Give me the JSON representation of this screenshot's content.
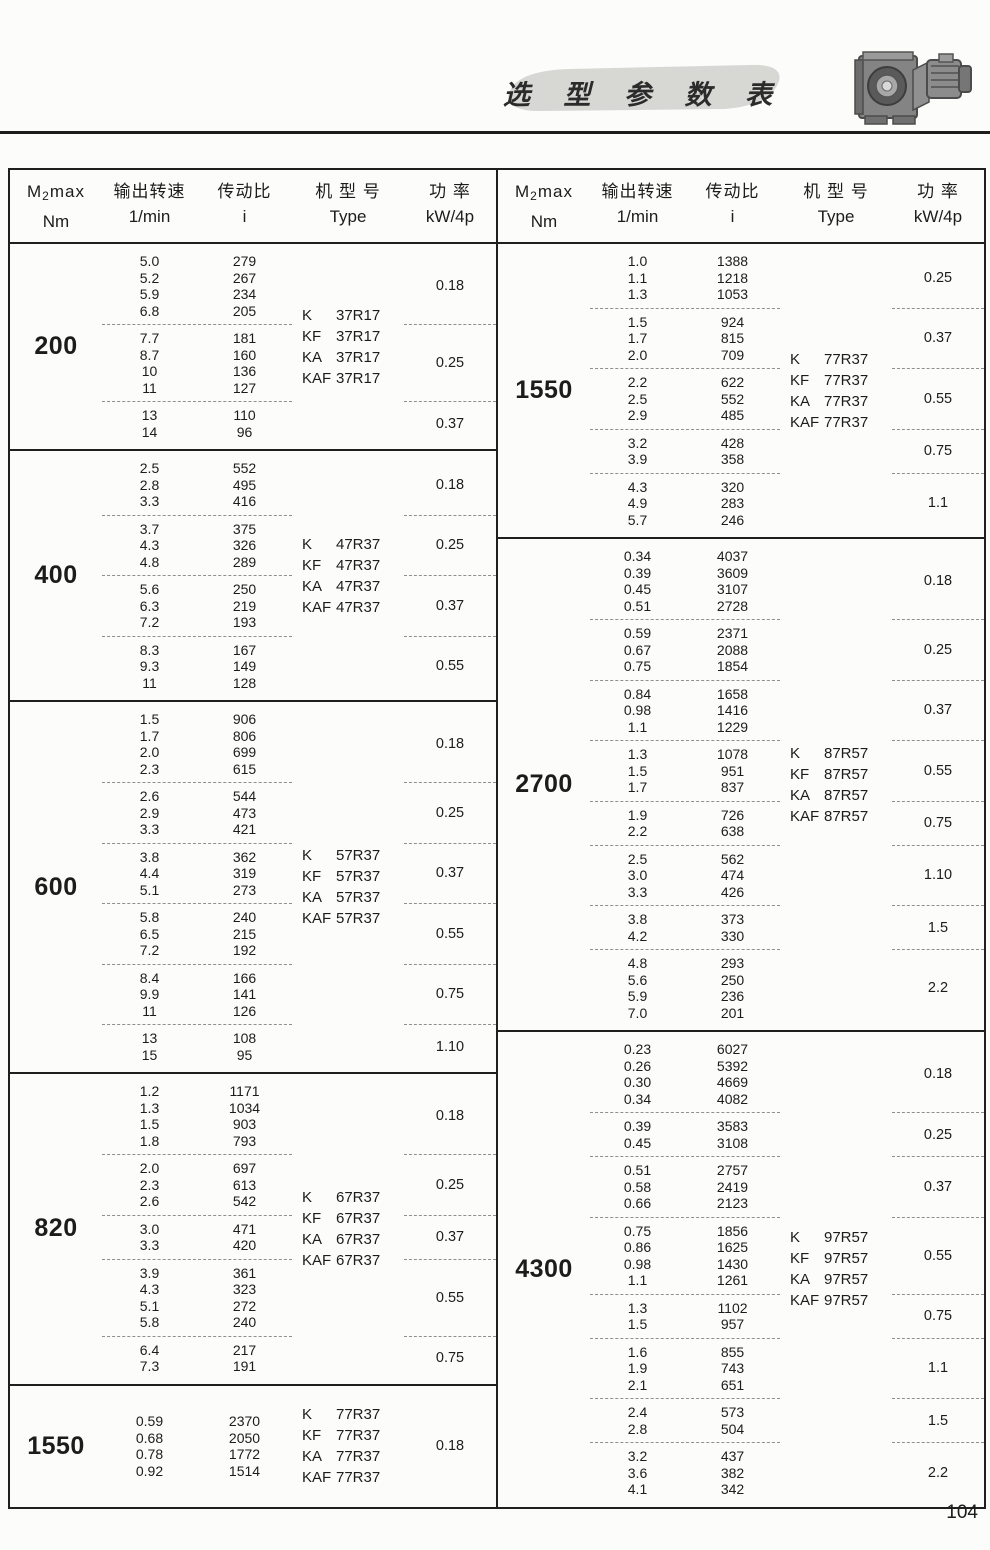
{
  "page": {
    "title": "选 型 参 数 表",
    "page_number": "104"
  },
  "header": {
    "torque": {
      "m": "M",
      "sub": "2",
      "rest": "max",
      "unit": "Nm"
    },
    "speed": {
      "cn": "输出转速",
      "unit": "1/min"
    },
    "ratio": {
      "cn": "传动比",
      "unit": "i"
    },
    "type": {
      "cn": "机 型 号",
      "unit": "Type"
    },
    "power": {
      "cn": "功 率",
      "unit": "kW/4p"
    }
  },
  "tables": {
    "left": [
      {
        "torque": "200",
        "types": [
          {
            "prefix": "K",
            "model": "37R17"
          },
          {
            "prefix": "KF",
            "model": "37R17"
          },
          {
            "prefix": "KA",
            "model": "37R17"
          },
          {
            "prefix": "KAF",
            "model": "37R17"
          }
        ],
        "groups": [
          {
            "rows": [
              [
                "5.0",
                "279"
              ],
              [
                "5.2",
                "267"
              ],
              [
                "5.9",
                "234"
              ],
              [
                "6.8",
                "205"
              ]
            ],
            "power": "0.18"
          },
          {
            "rows": [
              [
                "7.7",
                "181"
              ],
              [
                "8.7",
                "160"
              ],
              [
                "10",
                "136"
              ],
              [
                "11",
                "127"
              ]
            ],
            "power": "0.25"
          },
          {
            "rows": [
              [
                "13",
                "110"
              ],
              [
                "14",
                "96"
              ]
            ],
            "power": "0.37"
          }
        ]
      },
      {
        "torque": "400",
        "types": [
          {
            "prefix": "K",
            "model": "47R37"
          },
          {
            "prefix": "KF",
            "model": "47R37"
          },
          {
            "prefix": "KA",
            "model": "47R37"
          },
          {
            "prefix": "KAF",
            "model": "47R37"
          }
        ],
        "groups": [
          {
            "rows": [
              [
                "2.5",
                "552"
              ],
              [
                "2.8",
                "495"
              ],
              [
                "3.3",
                "416"
              ]
            ],
            "power": "0.18"
          },
          {
            "rows": [
              [
                "3.7",
                "375"
              ],
              [
                "4.3",
                "326"
              ],
              [
                "4.8",
                "289"
              ]
            ],
            "power": "0.25"
          },
          {
            "rows": [
              [
                "5.6",
                "250"
              ],
              [
                "6.3",
                "219"
              ],
              [
                "7.2",
                "193"
              ]
            ],
            "power": "0.37"
          },
          {
            "rows": [
              [
                "8.3",
                "167"
              ],
              [
                "9.3",
                "149"
              ],
              [
                "11",
                "128"
              ]
            ],
            "power": "0.55"
          }
        ]
      },
      {
        "torque": "600",
        "types": [
          {
            "prefix": "K",
            "model": "57R37"
          },
          {
            "prefix": "KF",
            "model": "57R37"
          },
          {
            "prefix": "KA",
            "model": "57R37"
          },
          {
            "prefix": "KAF",
            "model": "57R37"
          }
        ],
        "groups": [
          {
            "rows": [
              [
                "1.5",
                "906"
              ],
              [
                "1.7",
                "806"
              ],
              [
                "2.0",
                "699"
              ],
              [
                "2.3",
                "615"
              ]
            ],
            "power": "0.18"
          },
          {
            "rows": [
              [
                "2.6",
                "544"
              ],
              [
                "2.9",
                "473"
              ],
              [
                "3.3",
                "421"
              ]
            ],
            "power": "0.25"
          },
          {
            "rows": [
              [
                "3.8",
                "362"
              ],
              [
                "4.4",
                "319"
              ],
              [
                "5.1",
                "273"
              ]
            ],
            "power": "0.37"
          },
          {
            "rows": [
              [
                "5.8",
                "240"
              ],
              [
                "6.5",
                "215"
              ],
              [
                "7.2",
                "192"
              ]
            ],
            "power": "0.55"
          },
          {
            "rows": [
              [
                "8.4",
                "166"
              ],
              [
                "9.9",
                "141"
              ],
              [
                "11",
                "126"
              ]
            ],
            "power": "0.75"
          },
          {
            "rows": [
              [
                "13",
                "108"
              ],
              [
                "15",
                "95"
              ]
            ],
            "power": "1.10"
          }
        ]
      },
      {
        "torque": "820",
        "types": [
          {
            "prefix": "K",
            "model": "67R37"
          },
          {
            "prefix": "KF",
            "model": "67R37"
          },
          {
            "prefix": "KA",
            "model": "67R37"
          },
          {
            "prefix": "KAF",
            "model": "67R37"
          }
        ],
        "groups": [
          {
            "rows": [
              [
                "1.2",
                "1171"
              ],
              [
                "1.3",
                "1034"
              ],
              [
                "1.5",
                "903"
              ],
              [
                "1.8",
                "793"
              ]
            ],
            "power": "0.18"
          },
          {
            "rows": [
              [
                "2.0",
                "697"
              ],
              [
                "2.3",
                "613"
              ],
              [
                "2.6",
                "542"
              ]
            ],
            "power": "0.25"
          },
          {
            "rows": [
              [
                "3.0",
                "471"
              ],
              [
                "3.3",
                "420"
              ]
            ],
            "power": "0.37"
          },
          {
            "rows": [
              [
                "3.9",
                "361"
              ],
              [
                "4.3",
                "323"
              ],
              [
                "5.1",
                "272"
              ],
              [
                "5.8",
                "240"
              ]
            ],
            "power": "0.55"
          },
          {
            "rows": [
              [
                "6.4",
                "217"
              ],
              [
                "7.3",
                "191"
              ]
            ],
            "power": "0.75"
          }
        ]
      },
      {
        "torque": "1550",
        "types": [
          {
            "prefix": "K",
            "model": "77R37"
          },
          {
            "prefix": "KF",
            "model": "77R37"
          },
          {
            "prefix": "KA",
            "model": "77R37"
          },
          {
            "prefix": "KAF",
            "model": "77R37"
          }
        ],
        "groups": [
          {
            "rows": [
              [
                "0.59",
                "2370"
              ],
              [
                "0.68",
                "2050"
              ],
              [
                "0.78",
                "1772"
              ],
              [
                "0.92",
                "1514"
              ]
            ],
            "power": "0.18"
          }
        ]
      }
    ],
    "right": [
      {
        "torque": "1550",
        "types": [
          {
            "prefix": "K",
            "model": "77R37"
          },
          {
            "prefix": "KF",
            "model": "77R37"
          },
          {
            "prefix": "KA",
            "model": "77R37"
          },
          {
            "prefix": "KAF",
            "model": "77R37"
          }
        ],
        "groups": [
          {
            "rows": [
              [
                "1.0",
                "1388"
              ],
              [
                "1.1",
                "1218"
              ],
              [
                "1.3",
                "1053"
              ]
            ],
            "power": "0.25"
          },
          {
            "rows": [
              [
                "1.5",
                "924"
              ],
              [
                "1.7",
                "815"
              ],
              [
                "2.0",
                "709"
              ]
            ],
            "power": "0.37"
          },
          {
            "rows": [
              [
                "2.2",
                "622"
              ],
              [
                "2.5",
                "552"
              ],
              [
                "2.9",
                "485"
              ]
            ],
            "power": "0.55"
          },
          {
            "rows": [
              [
                "3.2",
                "428"
              ],
              [
                "3.9",
                "358"
              ]
            ],
            "power": "0.75"
          },
          {
            "rows": [
              [
                "4.3",
                "320"
              ],
              [
                "4.9",
                "283"
              ],
              [
                "5.7",
                "246"
              ]
            ],
            "power": "1.1"
          }
        ]
      },
      {
        "torque": "2700",
        "types": [
          {
            "prefix": "K",
            "model": "87R57"
          },
          {
            "prefix": "KF",
            "model": "87R57"
          },
          {
            "prefix": "KA",
            "model": "87R57"
          },
          {
            "prefix": "KAF",
            "model": "87R57"
          }
        ],
        "groups": [
          {
            "rows": [
              [
                "0.34",
                "4037"
              ],
              [
                "0.39",
                "3609"
              ],
              [
                "0.45",
                "3107"
              ],
              [
                "0.51",
                "2728"
              ]
            ],
            "power": "0.18"
          },
          {
            "rows": [
              [
                "0.59",
                "2371"
              ],
              [
                "0.67",
                "2088"
              ],
              [
                "0.75",
                "1854"
              ]
            ],
            "power": "0.25"
          },
          {
            "rows": [
              [
                "0.84",
                "1658"
              ],
              [
                "0.98",
                "1416"
              ],
              [
                "1.1",
                "1229"
              ]
            ],
            "power": "0.37"
          },
          {
            "rows": [
              [
                "1.3",
                "1078"
              ],
              [
                "1.5",
                "951"
              ],
              [
                "1.7",
                "837"
              ]
            ],
            "power": "0.55"
          },
          {
            "rows": [
              [
                "1.9",
                "726"
              ],
              [
                "2.2",
                "638"
              ]
            ],
            "power": "0.75"
          },
          {
            "rows": [
              [
                "2.5",
                "562"
              ],
              [
                "3.0",
                "474"
              ],
              [
                "3.3",
                "426"
              ]
            ],
            "power": "1.10"
          },
          {
            "rows": [
              [
                "3.8",
                "373"
              ],
              [
                "4.2",
                "330"
              ]
            ],
            "power": "1.5"
          },
          {
            "rows": [
              [
                "4.8",
                "293"
              ],
              [
                "5.6",
                "250"
              ],
              [
                "5.9",
                "236"
              ],
              [
                "7.0",
                "201"
              ]
            ],
            "power": "2.2"
          }
        ]
      },
      {
        "torque": "4300",
        "types": [
          {
            "prefix": "K",
            "model": "97R57"
          },
          {
            "prefix": "KF",
            "model": "97R57"
          },
          {
            "prefix": "KA",
            "model": "97R57"
          },
          {
            "prefix": "KAF",
            "model": "97R57"
          }
        ],
        "groups": [
          {
            "rows": [
              [
                "0.23",
                "6027"
              ],
              [
                "0.26",
                "5392"
              ],
              [
                "0.30",
                "4669"
              ],
              [
                "0.34",
                "4082"
              ]
            ],
            "power": "0.18"
          },
          {
            "rows": [
              [
                "0.39",
                "3583"
              ],
              [
                "0.45",
                "3108"
              ]
            ],
            "power": "0.25"
          },
          {
            "rows": [
              [
                "0.51",
                "2757"
              ],
              [
                "0.58",
                "2419"
              ],
              [
                "0.66",
                "2123"
              ]
            ],
            "power": "0.37"
          },
          {
            "rows": [
              [
                "0.75",
                "1856"
              ],
              [
                "0.86",
                "1625"
              ],
              [
                "0.98",
                "1430"
              ],
              [
                "1.1",
                "1261"
              ]
            ],
            "power": "0.55"
          },
          {
            "rows": [
              [
                "1.3",
                "1102"
              ],
              [
                "1.5",
                "957"
              ]
            ],
            "power": "0.75"
          },
          {
            "rows": [
              [
                "1.6",
                "855"
              ],
              [
                "1.9",
                "743"
              ],
              [
                "2.1",
                "651"
              ]
            ],
            "power": "1.1"
          },
          {
            "rows": [
              [
                "2.4",
                "573"
              ],
              [
                "2.8",
                "504"
              ]
            ],
            "power": "1.5"
          },
          {
            "rows": [
              [
                "3.2",
                "437"
              ],
              [
                "3.6",
                "382"
              ],
              [
                "4.1",
                "342"
              ]
            ],
            "power": "2.2"
          }
        ]
      }
    ]
  }
}
